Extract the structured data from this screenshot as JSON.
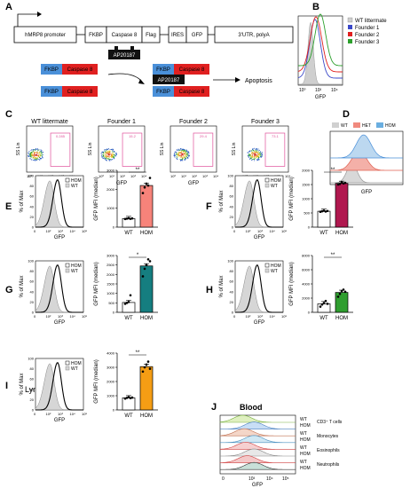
{
  "colors": {
    "red": "#e02020",
    "blue": "#3a78c8",
    "fkbp": "#4a90d9",
    "green": "#2ca02c",
    "pink": "#f7837a",
    "crimson": "#b0184f",
    "teal": "#157e80",
    "orange": "#f59d14",
    "green_bar": "#2f9e2f",
    "gate": "#e0509a"
  },
  "panels": {
    "A": "A",
    "B": "B",
    "C": "C",
    "D": "D",
    "E": "E",
    "F": "F",
    "G": "G",
    "H": "H",
    "I": "I",
    "J": "J"
  },
  "A": {
    "construct": [
      "hMRP8 promoter",
      "FKBP",
      "Caspase 8",
      "Flag",
      "IRES",
      "GFP",
      "3'UTR, polyA"
    ],
    "fkbp": "FKBP",
    "caspase": "Caspase 8",
    "drug": "AP20187",
    "outcome": "Apoptosis"
  },
  "B": {
    "legend": [
      "WT littermate",
      "Founder 1",
      "Founder 2",
      "Founder 3"
    ],
    "xlabel": "GFP",
    "ticks": [
      "10⁰",
      "10²",
      "10⁴"
    ]
  },
  "C": {
    "titles": [
      "WT littermate",
      "Founder 1",
      "Founder 2",
      "Founder 3"
    ],
    "gates": [
      "0.285",
      "15.2",
      "29.4",
      "73.1"
    ],
    "ylabel": "SS Lin",
    "xlabel": "GFP",
    "xticks": [
      "10⁰",
      "10¹",
      "10²",
      "10³",
      "10⁴"
    ],
    "yticks": [
      "200",
      "400",
      "600",
      "800",
      "1000"
    ]
  },
  "D": {
    "legend": [
      "WT",
      "HET",
      "HOM"
    ],
    "xlabel": "GFP"
  },
  "hist": {
    "ylabel": "% of Max",
    "xlabel": "GFP",
    "hom": "HOM",
    "wt": "WT",
    "yticks": [
      "0",
      "20",
      "40",
      "60",
      "80",
      "100"
    ],
    "xticks": [
      "0",
      "10²",
      "10³",
      "10⁴",
      "10⁵"
    ]
  },
  "bar": {
    "ylabel": "GFP MFI (median)",
    "categories": [
      "WT",
      "HOM"
    ]
  },
  "E": {
    "title": "Blood",
    "sig": "**",
    "yticks": [
      "0",
      "1000",
      "2000",
      "3000"
    ]
  },
  "F": {
    "title": "Spleen",
    "sig": "**",
    "yticks": [
      "0",
      "500",
      "1000",
      "1500",
      "2000"
    ]
  },
  "G": {
    "title": "Lung",
    "sig": "*",
    "yticks": [
      "0",
      "500",
      "1000",
      "1500",
      "2000",
      "2500",
      "3000"
    ]
  },
  "H": {
    "title": "Liver",
    "sig": "**",
    "yticks": [
      "0",
      "2000",
      "4000",
      "6000",
      "8000"
    ]
  },
  "I": {
    "title": "Lymph Node",
    "sig": "**",
    "yticks": [
      "0",
      "1000",
      "2000",
      "3000",
      "4000"
    ]
  },
  "J": {
    "title": "Blood",
    "labels": [
      "WT",
      "CD3⁺ T cells",
      "HOM",
      "WT",
      "Monocytes",
      "HOM",
      "WT",
      "Eosinophils",
      "HOM",
      "WT",
      "Neutrophils",
      "HOM"
    ],
    "xlabel": "GFP",
    "xticks": [
      "0",
      "10³",
      "10⁴",
      "10⁵"
    ]
  },
  "chart_data": [
    {
      "type": "bar",
      "panel": "E",
      "title": "Blood",
      "categories": [
        "WT",
        "HOM"
      ],
      "values": [
        450,
        2200
      ],
      "points": [
        [
          430,
          450,
          470,
          440,
          460
        ],
        [
          1800,
          2100,
          2300,
          2200,
          2600
        ]
      ],
      "ylabel": "GFP MFI (median)",
      "ylim": [
        0,
        3000
      ]
    },
    {
      "type": "bar",
      "panel": "F",
      "title": "Spleen",
      "categories": [
        "WT",
        "HOM"
      ],
      "values": [
        560,
        1540
      ],
      "points": [
        [
          540,
          560,
          580,
          550,
          570
        ],
        [
          1500,
          1520,
          1580,
          1540,
          1560
        ]
      ],
      "ylabel": "GFP MFI (median)",
      "ylim": [
        0,
        2000
      ]
    },
    {
      "type": "bar",
      "panel": "G",
      "title": "Lung",
      "categories": [
        "WT",
        "HOM"
      ],
      "values": [
        520,
        2450
      ],
      "points": [
        [
          450,
          500,
          550,
          900
        ],
        [
          1900,
          2300,
          2500,
          2800,
          2700
        ]
      ],
      "ylabel": "GFP MFI (median)",
      "ylim": [
        0,
        3000
      ]
    },
    {
      "type": "bar",
      "panel": "H",
      "title": "Liver",
      "categories": [
        "WT",
        "HOM"
      ],
      "values": [
        1200,
        2800
      ],
      "points": [
        [
          800,
          1100,
          1300,
          1600,
          1200
        ],
        [
          2200,
          2600,
          3000,
          3200,
          2900
        ]
      ],
      "ylabel": "GFP MFI (median)",
      "ylim": [
        0,
        8000
      ]
    },
    {
      "type": "bar",
      "panel": "I",
      "title": "Lymph Node",
      "categories": [
        "WT",
        "HOM"
      ],
      "values": [
        850,
        3050
      ],
      "points": [
        [
          800,
          850,
          900,
          830,
          870
        ],
        [
          2700,
          3000,
          3200,
          3400,
          2900
        ]
      ],
      "ylabel": "GFP MFI (median)",
      "ylim": [
        0,
        4000
      ]
    }
  ]
}
